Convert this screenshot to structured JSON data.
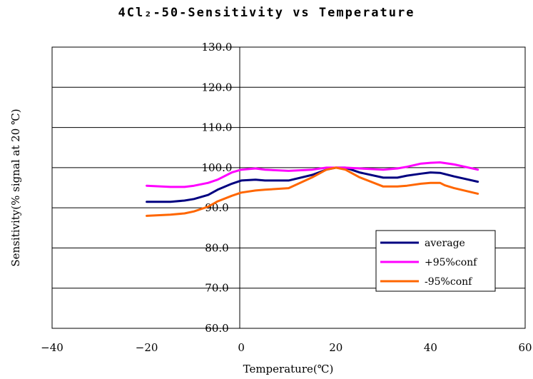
{
  "chart_data": {
    "type": "line",
    "title": "4Cl₂-50-Sensitivity vs Temperature",
    "xlabel": "Temperature(℃)",
    "ylabel": "Sensitivity(% signal at 20 ℃)",
    "xlim": [
      -40,
      60
    ],
    "ylim": [
      60,
      130
    ],
    "x_ticks": [
      "-40",
      "-20",
      "0",
      "20",
      "40",
      "60"
    ],
    "y_ticks": [
      "60.0",
      "70.0",
      "80.0",
      "90.0",
      "100.0",
      "110.0",
      "120.0",
      "130.0"
    ],
    "grid": "horizontal",
    "legend_position": "bottom-right",
    "series": [
      {
        "name": "average",
        "color": "#000080",
        "x": [
          -20,
          -15,
          -12,
          -10,
          -7,
          -5,
          -2,
          0,
          3,
          5,
          10,
          15,
          18,
          20,
          22,
          25,
          30,
          33,
          35,
          38,
          40,
          42,
          45,
          50
        ],
        "y": [
          91.5,
          91.5,
          91.8,
          92.2,
          93.2,
          94.5,
          96.0,
          96.8,
          97.0,
          96.8,
          96.8,
          98.2,
          99.5,
          100.0,
          100.0,
          98.8,
          97.5,
          97.5,
          98.0,
          98.5,
          98.8,
          98.7,
          97.8,
          96.5
        ]
      },
      {
        "name": "+95%conf",
        "color": "#ff00ff",
        "x": [
          -20,
          -15,
          -12,
          -10,
          -7,
          -5,
          -2,
          0,
          3,
          5,
          10,
          15,
          18,
          20,
          22,
          25,
          30,
          33,
          35,
          38,
          40,
          42,
          45,
          50
        ],
        "y": [
          95.5,
          95.2,
          95.2,
          95.5,
          96.2,
          97.0,
          98.8,
          99.5,
          99.8,
          99.5,
          99.2,
          99.5,
          100.0,
          100.0,
          100.0,
          99.8,
          99.5,
          99.8,
          100.2,
          101.0,
          101.2,
          101.3,
          100.8,
          99.5
        ]
      },
      {
        "name": "-95%conf",
        "color": "#ff6600",
        "x": [
          -20,
          -15,
          -12,
          -10,
          -7,
          -5,
          -2,
          0,
          3,
          5,
          10,
          15,
          18,
          20,
          22,
          25,
          30,
          33,
          35,
          38,
          40,
          42,
          43,
          45,
          50
        ],
        "y": [
          88.0,
          88.3,
          88.6,
          89.1,
          90.3,
          91.6,
          93.0,
          93.8,
          94.3,
          94.5,
          94.9,
          97.6,
          99.5,
          100.0,
          99.5,
          97.6,
          95.3,
          95.3,
          95.5,
          96.0,
          96.2,
          96.2,
          95.6,
          94.9,
          93.5
        ]
      }
    ]
  }
}
